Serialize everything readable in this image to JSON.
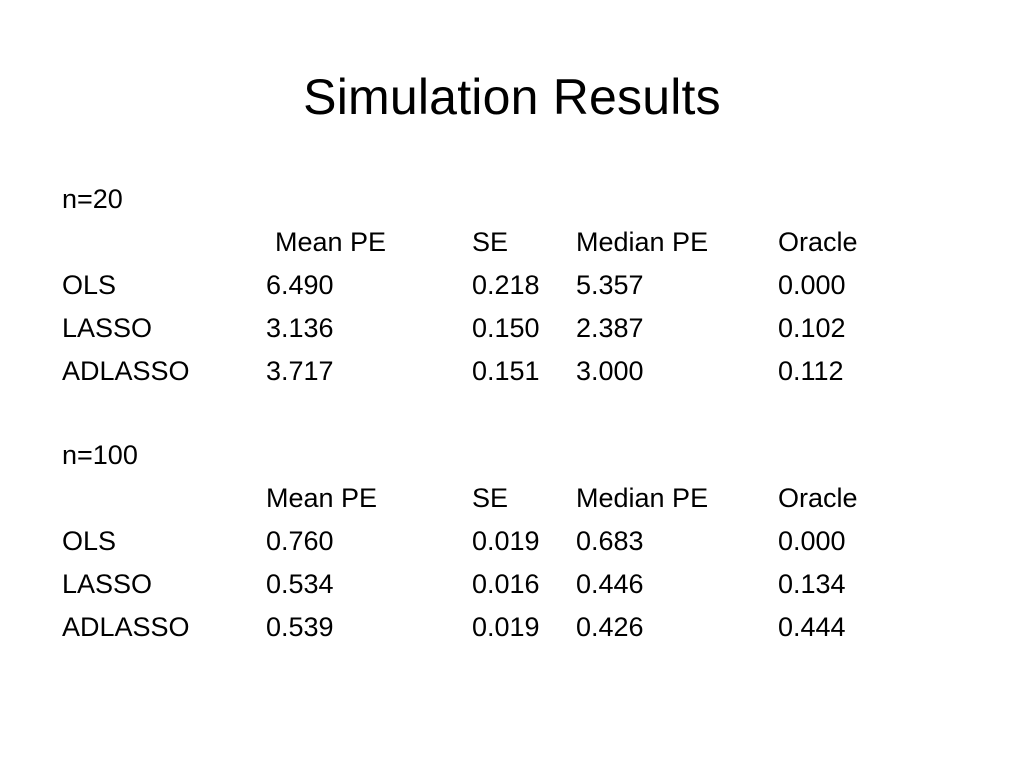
{
  "slide": {
    "title": "Simulation Results"
  },
  "sections": [
    {
      "label": "n=20",
      "headers": [
        "",
        "Mean PE",
        "SE",
        "Median PE",
        "Oracle"
      ],
      "rows": [
        [
          "OLS",
          "6.490",
          "0.218",
          "5.357",
          "0.000"
        ],
        [
          "LASSO",
          "3.136",
          "0.150",
          "2.387",
          "0.102"
        ],
        [
          "ADLASSO",
          "3.717",
          "0.151",
          "3.000",
          "0.112"
        ]
      ]
    },
    {
      "label": "n=100",
      "headers": [
        "",
        "Mean PE",
        "SE",
        "Median PE",
        "Oracle"
      ],
      "rows": [
        [
          "OLS",
          "0.760",
          "0.019",
          "0.683",
          "0.000"
        ],
        [
          "LASSO",
          "0.534",
          "0.016",
          "0.446",
          "0.134"
        ],
        [
          "ADLASSO",
          "0.539",
          "0.019",
          "0.426",
          "0.444"
        ]
      ]
    }
  ]
}
